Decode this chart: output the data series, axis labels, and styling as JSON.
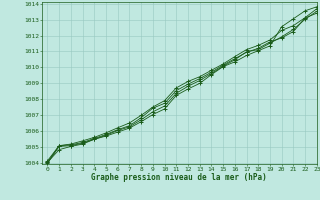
{
  "xlabel": "Graphe pression niveau de la mer (hPa)",
  "xlim": [
    -0.5,
    23
  ],
  "ylim": [
    1004,
    1014
  ],
  "yticks": [
    1004,
    1005,
    1006,
    1007,
    1008,
    1009,
    1010,
    1011,
    1012,
    1013,
    1014
  ],
  "xticks": [
    0,
    1,
    2,
    3,
    4,
    5,
    6,
    7,
    8,
    9,
    10,
    11,
    12,
    13,
    14,
    15,
    16,
    17,
    18,
    19,
    20,
    21,
    22,
    23
  ],
  "background_color": "#c0e8e0",
  "grid_color": "#98c8c0",
  "line_color": "#1a5c1a",
  "lines": [
    {
      "y": [
        1004.05,
        1004.85,
        1005.05,
        1005.2,
        1005.5,
        1005.7,
        1005.95,
        1006.2,
        1006.6,
        1007.05,
        1007.4,
        1008.25,
        1008.65,
        1009.0,
        1009.55,
        1010.05,
        1010.35,
        1010.75,
        1011.05,
        1011.35,
        1012.55,
        1013.05,
        1013.55,
        1013.8
      ],
      "marker": true
    },
    {
      "y": [
        1004.05,
        1005.1,
        1005.15,
        1005.3,
        1005.55,
        1005.8,
        1006.1,
        1006.35,
        1006.85,
        1007.45,
        1007.75,
        1008.55,
        1008.95,
        1009.3,
        1009.7,
        1010.15,
        1010.55,
        1010.95,
        1011.2,
        1011.6,
        1011.85,
        1012.25,
        1013.1,
        1013.4
      ],
      "marker": true
    },
    {
      "y": [
        1004.15,
        1005.1,
        1005.2,
        1005.4,
        1005.62,
        1005.9,
        1006.22,
        1006.52,
        1007.0,
        1007.52,
        1007.92,
        1008.72,
        1009.12,
        1009.42,
        1009.82,
        1010.22,
        1010.68,
        1011.12,
        1011.38,
        1011.72,
        1012.32,
        1012.62,
        1013.12,
        1013.68
      ],
      "marker": true
    },
    {
      "y": [
        1004.0,
        1005.05,
        1005.1,
        1005.25,
        1005.5,
        1005.75,
        1006.05,
        1006.28,
        1006.72,
        1007.22,
        1007.58,
        1008.38,
        1008.82,
        1009.18,
        1009.62,
        1010.08,
        1010.48,
        1010.98,
        1011.12,
        1011.52,
        1011.92,
        1012.38,
        1013.02,
        1013.52
      ],
      "marker": true
    }
  ]
}
